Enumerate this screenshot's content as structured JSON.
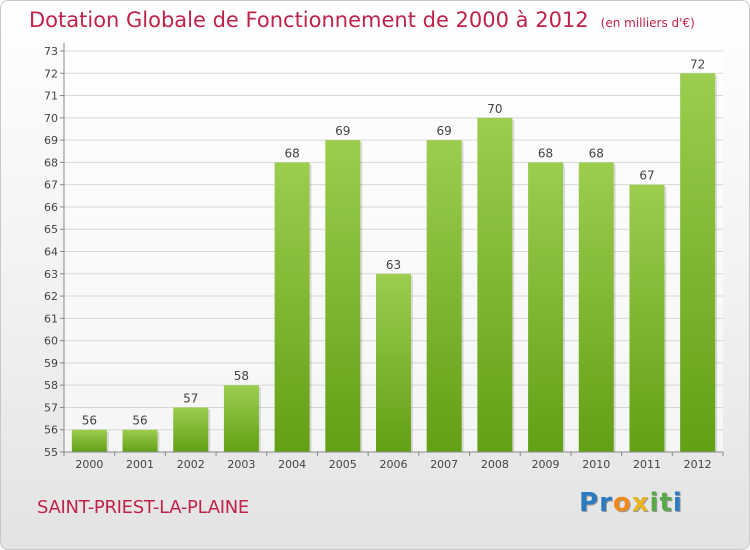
{
  "header": {
    "title": "Dotation Globale de Fonctionnement de 2000 à 2012",
    "unit": "(en milliers d'€)"
  },
  "commune": "SAINT-PRIEST-LA-PLAINE",
  "brand": {
    "text": "Proxiti",
    "letters": [
      "P",
      "r",
      "o",
      "x",
      "i",
      "t",
      "i"
    ]
  },
  "colors": {
    "bar_top": "#9ccd4f",
    "bar_bottom": "#62a014",
    "title": "#c0234a",
    "grid": "#d7d7d7"
  },
  "chart_data": {
    "type": "bar",
    "title": "Dotation Globale de Fonctionnement de 2000 à 2012",
    "subtitle": "(en milliers d'€)",
    "xlabel": "",
    "ylabel": "",
    "categories": [
      "2000",
      "2001",
      "2002",
      "2003",
      "2004",
      "2005",
      "2006",
      "2007",
      "2008",
      "2009",
      "2010",
      "2011",
      "2012"
    ],
    "values": [
      56,
      56,
      57,
      58,
      68,
      69,
      63,
      69,
      70,
      68,
      68,
      67,
      72
    ],
    "ylim": [
      55,
      73
    ],
    "yticks": [
      55,
      56,
      57,
      58,
      59,
      60,
      61,
      62,
      63,
      64,
      65,
      66,
      67,
      68,
      69,
      70,
      71,
      72,
      73
    ],
    "grid": true,
    "legend": "none"
  }
}
